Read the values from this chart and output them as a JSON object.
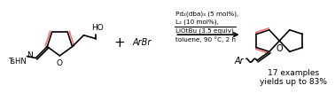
{
  "bg_color": "#ffffff",
  "figsize": [
    3.78,
    1.05
  ],
  "dpi": 100,
  "reaction_conditions": [
    "Pd₂(dba)₃ (5 mol%),",
    "L₂ (10 mol%),",
    "LiOtBu (3.5 equiv)",
    "toluene, 90 °C, 2 h"
  ],
  "plus_text": "+",
  "arBr_text": "ArBr",
  "bottom_text_line1": "17 examples",
  "bottom_text_line2": "yields up to 83%",
  "ho_text": "HO",
  "ar_text": "Ar",
  "o_text": "O",
  "tsHNN_text": "TsHN",
  "N_text": "N",
  "black": "#000000",
  "pink": "#f87171"
}
